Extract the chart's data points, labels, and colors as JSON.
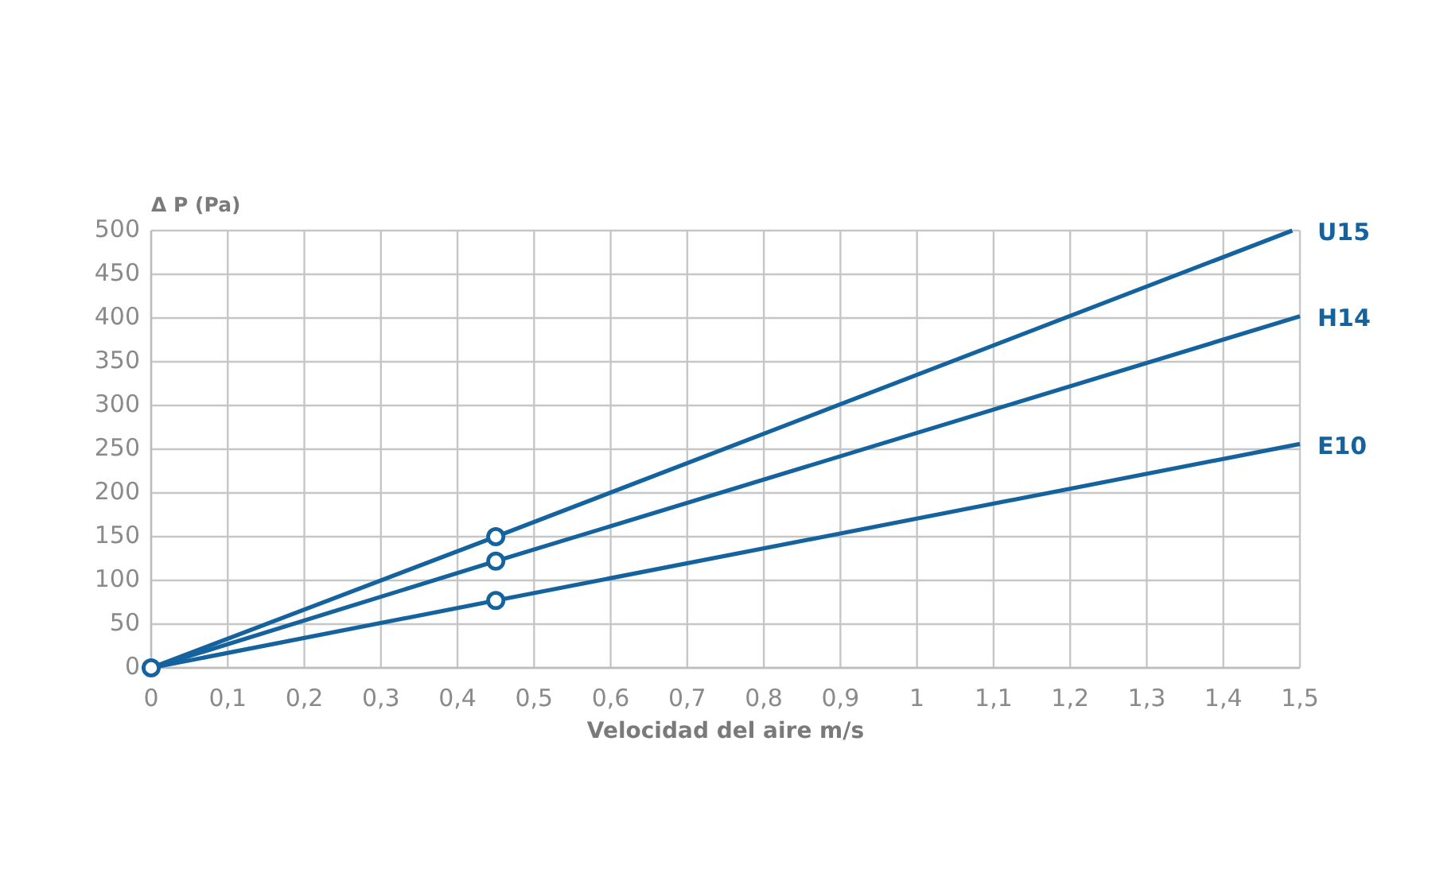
{
  "chart_data": {
    "type": "line",
    "xlabel": "Velocidad del aire m/s",
    "ylabel": "Δ P (Pa)",
    "xlim": [
      0,
      1.5
    ],
    "ylim": [
      0,
      500
    ],
    "xticks": [
      0,
      {
        "value": 0.1,
        "label": "0,1"
      },
      {
        "value": 0.2,
        "label": "0,2"
      },
      {
        "value": 0.3,
        "label": "0,3"
      },
      {
        "value": 0.4,
        "label": "0,4"
      },
      {
        "value": 0.5,
        "label": "0,5"
      },
      {
        "value": 0.6,
        "label": "0,6"
      },
      {
        "value": 0.7,
        "label": "0,7"
      },
      {
        "value": 0.8,
        "label": "0,8"
      },
      {
        "value": 0.9,
        "label": "0,9"
      },
      1,
      {
        "value": 1.1,
        "label": "1,1"
      },
      {
        "value": 1.2,
        "label": "1,2"
      },
      {
        "value": 1.3,
        "label": "1,3"
      },
      {
        "value": 1.4,
        "label": "1,4"
      },
      {
        "value": 1.5,
        "label": "1,5"
      }
    ],
    "yticks": [
      0,
      50,
      100,
      150,
      200,
      250,
      300,
      350,
      400,
      450,
      500
    ],
    "grid": true,
    "series": [
      {
        "name": "U15",
        "color": "#14639e",
        "x": [
          0,
          0.45,
          1.49
        ],
        "values": [
          0,
          150,
          500
        ]
      },
      {
        "name": "H14",
        "color": "#14639e",
        "x": [
          0,
          0.45,
          1.5
        ],
        "values": [
          0,
          122,
          402
        ]
      },
      {
        "name": "E10",
        "color": "#14639e",
        "x": [
          0,
          0.45,
          1.5
        ],
        "values": [
          0,
          77,
          256
        ]
      },
      {
        "type": "scatter",
        "marker": "circle",
        "color": "#14639e",
        "x": [
          0,
          0.45,
          0.45,
          0.45
        ],
        "values": [
          0,
          150,
          122,
          77
        ]
      }
    ]
  }
}
